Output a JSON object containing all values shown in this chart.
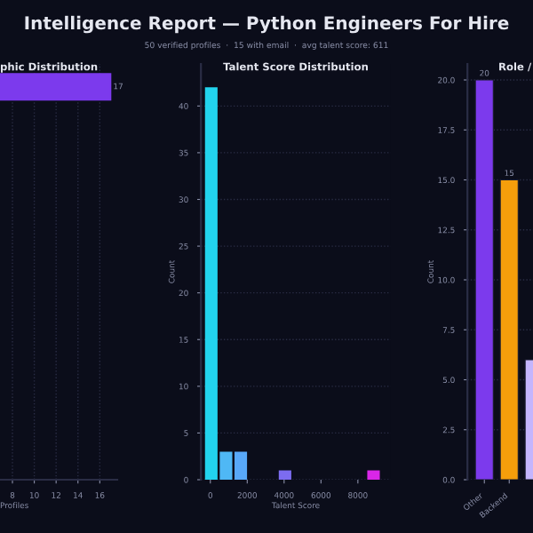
{
  "chart_data": [
    {
      "type": "other",
      "title": "Intelligence Report — Python Engineers For Hire",
      "subtitle": "50 verified profiles  ·  15 with email  ·  avg talent score: 611"
    },
    {
      "type": "bar",
      "title": "phic Distribution",
      "orientation": "horizontal",
      "categories": [
        null
      ],
      "values": [
        17
      ],
      "color": "#7c3aed",
      "xlabel": "Profiles",
      "xlim": [
        6.86,
        17.6
      ],
      "xticks": [
        8,
        10,
        12,
        14,
        16
      ],
      "data_labels": true,
      "grid": "x"
    },
    {
      "type": "histogram",
      "title": "Talent Score Distribution",
      "xlabel": "Talent Score",
      "ylabel": "Count",
      "bins": [
        -350,
        450,
        1250,
        2050,
        2850,
        3650,
        4450,
        5250,
        6050,
        6850,
        7650,
        8450,
        9250
      ],
      "values": [
        42,
        3,
        3,
        0,
        0,
        1,
        0,
        0,
        0,
        0,
        0,
        1
      ],
      "colors": [
        "#22d3ee",
        "#4fb8f5",
        "#58a8f8",
        null,
        null,
        "#7c6cf0",
        null,
        null,
        null,
        null,
        null,
        "#d926e8"
      ],
      "xlim": [
        -510,
        9780
      ],
      "ylim": [
        0,
        44.5
      ],
      "xticks": [
        0,
        2000,
        4000,
        6000,
        8000
      ],
      "yticks": [
        0,
        5,
        10,
        15,
        20,
        25,
        30,
        35,
        40
      ],
      "grid": "y"
    },
    {
      "type": "bar",
      "title": "Role /",
      "ylabel": "Count",
      "categories": [
        "Other",
        "Backend",
        null
      ],
      "values": [
        20,
        15,
        6
      ],
      "colors": [
        "#7c3aed",
        "#f59e0b",
        "#c4b5fd"
      ],
      "value_labels": [
        "20",
        "15",
        null
      ],
      "ylim": [
        0,
        20.8
      ],
      "yticks": [
        {
          "value": 0,
          "label": "0.0"
        },
        {
          "value": 2.5,
          "label": "2.5"
        },
        {
          "value": 5,
          "label": "5.0"
        },
        {
          "value": 7.5,
          "label": "7.5"
        },
        {
          "value": 10,
          "label": "10.0"
        },
        {
          "value": 12.5,
          "label": "12.5"
        },
        {
          "value": 15,
          "label": "15.0"
        },
        {
          "value": 17.5,
          "label": "17.5"
        },
        {
          "value": 20,
          "label": "20.0"
        }
      ],
      "grid": "y"
    }
  ]
}
